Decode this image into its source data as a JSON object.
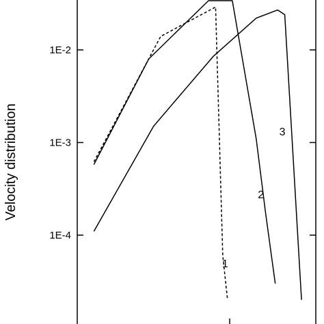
{
  "chart_data": {
    "type": "line",
    "ylabel": "Velocity distribution",
    "yscale": "log",
    "ylim": [
      2e-05,
      0.033
    ],
    "xlim": [
      0,
      1
    ],
    "grid": false,
    "yticks": [
      {
        "value": 0.01,
        "label": "1E-2"
      },
      {
        "value": 0.001,
        "label": "1E-3"
      },
      {
        "value": 0.0001,
        "label": "1E-4"
      }
    ],
    "series": [
      {
        "label": "1",
        "style": "dashed",
        "label_at": {
          "x": 0.62,
          "y": 4.5e-05
        },
        "points": [
          {
            "x": 0.07,
            "y": 0.00062
          },
          {
            "x": 0.35,
            "y": 0.014
          },
          {
            "x": 0.58,
            "y": 0.029
          },
          {
            "x": 0.61,
            "y": 6e-05
          },
          {
            "x": 0.63,
            "y": 2e-05
          }
        ]
      },
      {
        "label": "2",
        "style": "solid",
        "label_at": {
          "x": 0.77,
          "y": 0.00025
        },
        "points": [
          {
            "x": 0.07,
            "y": 0.00058
          },
          {
            "x": 0.3,
            "y": 0.008
          },
          {
            "x": 0.55,
            "y": 0.034
          },
          {
            "x": 0.65,
            "y": 0.034
          },
          {
            "x": 0.75,
            "y": 0.0011
          },
          {
            "x": 0.79,
            "y": 0.00017
          },
          {
            "x": 0.83,
            "y": 3e-05
          }
        ]
      },
      {
        "label": "3",
        "style": "solid",
        "label_at": {
          "x": 0.86,
          "y": 0.0012
        },
        "points": [
          {
            "x": 0.07,
            "y": 0.00011
          },
          {
            "x": 0.32,
            "y": 0.0015
          },
          {
            "x": 0.57,
            "y": 0.0085
          },
          {
            "x": 0.75,
            "y": 0.022
          },
          {
            "x": 0.84,
            "y": 0.027
          },
          {
            "x": 0.87,
            "y": 0.024
          },
          {
            "x": 0.94,
            "y": 2e-05
          }
        ]
      }
    ]
  }
}
